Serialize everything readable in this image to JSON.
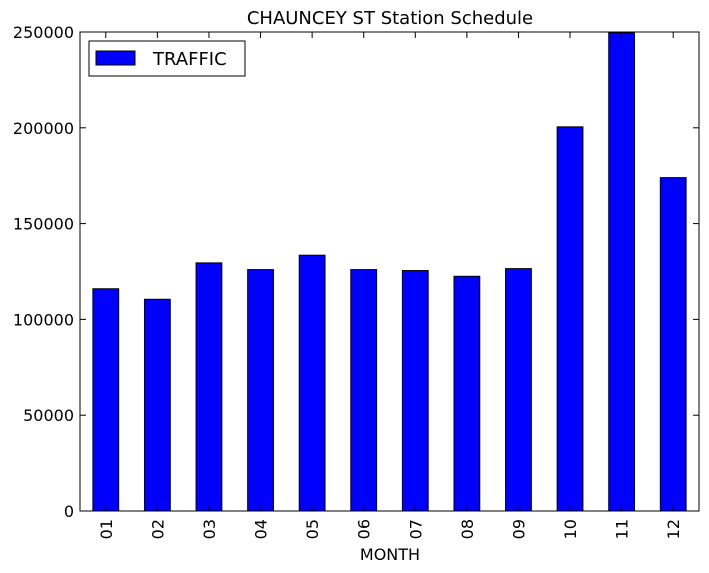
{
  "chart_data": {
    "type": "bar",
    "title": "CHAUNCEY ST Station Schedule",
    "xlabel": "MONTH",
    "ylabel": "",
    "categories": [
      "01",
      "02",
      "03",
      "04",
      "05",
      "06",
      "07",
      "08",
      "09",
      "10",
      "11",
      "12"
    ],
    "series": [
      {
        "name": "TRAFFIC",
        "color": "#0000ff",
        "values": [
          116000,
          110500,
          129500,
          126000,
          133500,
          126000,
          125500,
          122500,
          126500,
          200500,
          249500,
          174000
        ]
      }
    ],
    "ylim": [
      0,
      250000
    ],
    "yticks": [
      0,
      50000,
      100000,
      150000,
      200000,
      250000
    ],
    "ytick_labels": [
      "0",
      "50000",
      "100000",
      "150000",
      "200000",
      "250000"
    ],
    "grid": false,
    "legend_position": "top-left"
  }
}
